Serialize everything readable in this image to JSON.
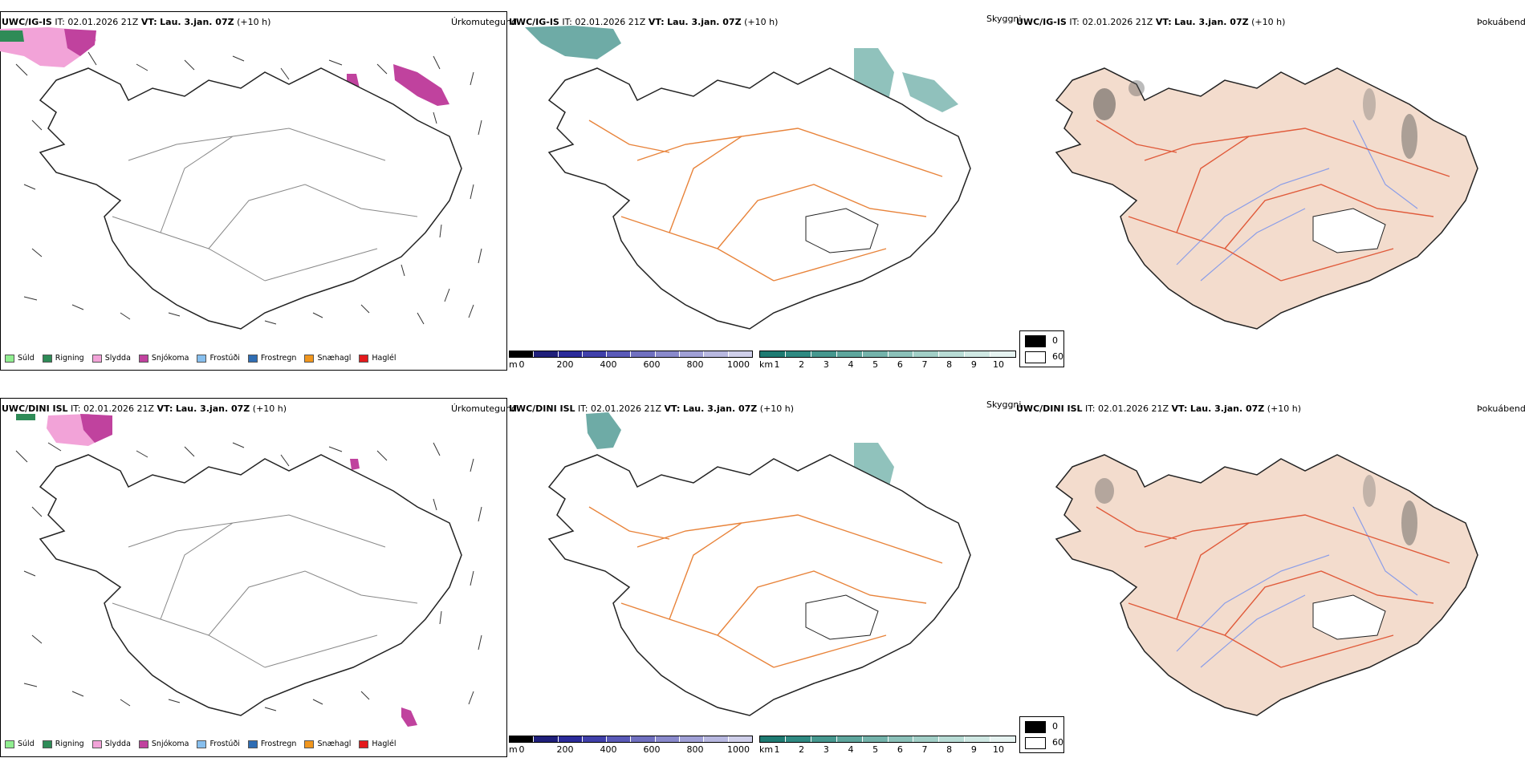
{
  "rows": [
    {
      "model_label": "UWC/IG-IS",
      "it_label": "IT:",
      "it_value": "02.01.2026 21Z",
      "vt_label": "VT:",
      "vt_value": "Lau. 3.jan. 07Z",
      "lead": "(+10 h)"
    },
    {
      "model_label": "UWC/DINI ISL",
      "it_label": "IT:",
      "it_value": "02.01.2026 21Z",
      "vt_label": "VT:",
      "vt_value": "Lau. 3.jan. 07Z",
      "lead": "(+10 h)"
    }
  ],
  "panel_names": {
    "precip_type": "Úrkomutegund",
    "visibility": "Skyggni",
    "fog": "Þokuábendi"
  },
  "precip_legend": [
    {
      "label": "Súld",
      "color": "#90ee90"
    },
    {
      "label": "Rigning",
      "color": "#2e8b57"
    },
    {
      "label": "Slydda",
      "color": "#f2a3d8"
    },
    {
      "label": "Snjókoma",
      "color": "#c0429e"
    },
    {
      "label": "Frostúði",
      "color": "#87bfee"
    },
    {
      "label": "Frostregn",
      "color": "#2f6db3"
    },
    {
      "label": "Snæhagl",
      "color": "#f0961e"
    },
    {
      "label": "Haglél",
      "color": "#e31a1c"
    }
  ],
  "elevation_bar": {
    "unit": "m",
    "ticks": [
      "0",
      "200",
      "400",
      "600",
      "800",
      "1000"
    ],
    "colors": [
      "#000000",
      "#1f1f7a",
      "#2b2b9a",
      "#4040aa",
      "#5a5ab8",
      "#7070c0",
      "#8a8acc",
      "#a0a0d6",
      "#b8b8e0",
      "#cfcfea"
    ]
  },
  "visibility_bar": {
    "unit": "km",
    "ticks": [
      "1",
      "2",
      "3",
      "4",
      "5",
      "6",
      "7",
      "8",
      "9",
      "10"
    ],
    "colors": [
      "#1e7b72",
      "#2f8a82",
      "#46988f",
      "#5ea69d",
      "#74b3ab",
      "#8bc1b9",
      "#a2cfc7",
      "#b8dcd5",
      "#cfe8e3",
      "#e6f3f1"
    ]
  },
  "fog_legend": {
    "items": [
      {
        "label": "0",
        "color": "#000000"
      },
      {
        "label": "60",
        "color": "#ffffff"
      }
    ]
  },
  "colors": {
    "land_fill": "#f3dccd",
    "road": "#e8833a",
    "road_red": "#e05a3a",
    "river": "#8a9de8",
    "coast": "#222222",
    "snow_pink": "#c0429e",
    "sleet_pink": "#f2a3d8",
    "teal": "#3d8f88"
  }
}
